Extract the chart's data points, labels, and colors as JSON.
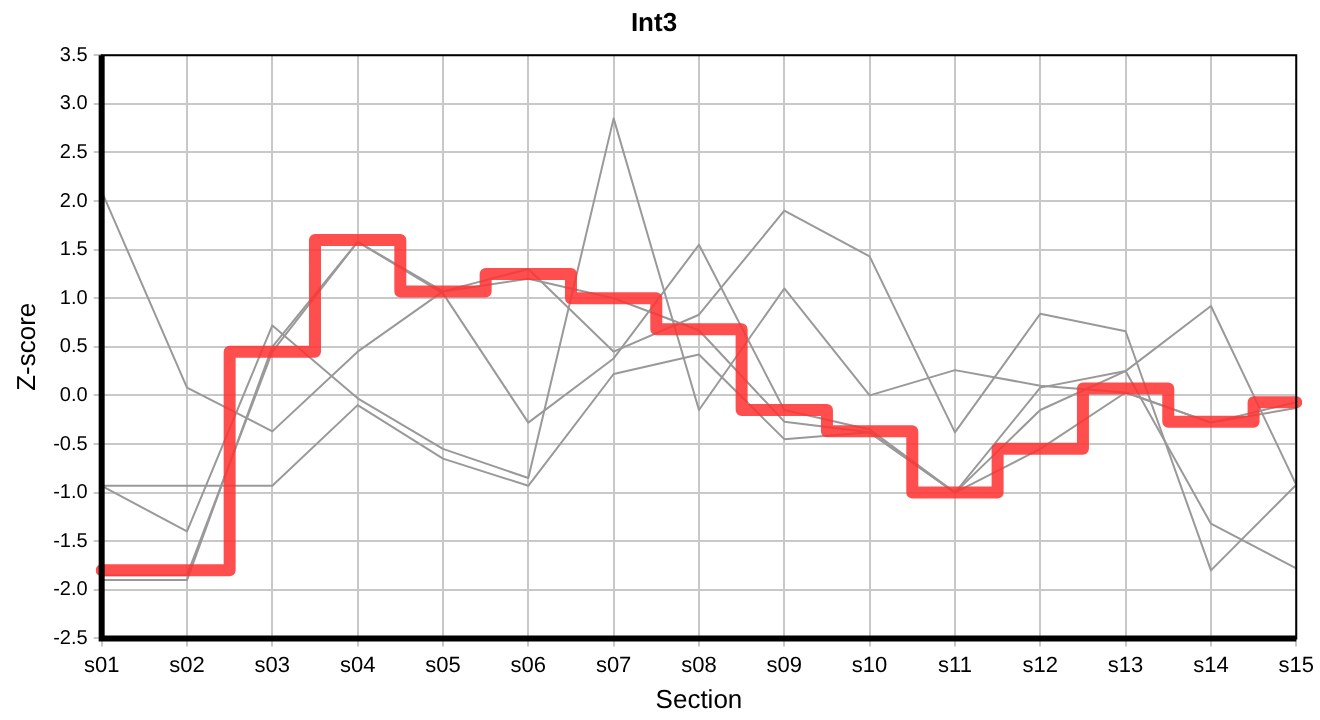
{
  "chart_data": {
    "type": "line",
    "title": "Int3",
    "xlabel": "Section",
    "ylabel": "Z-score",
    "categories": [
      "s01",
      "s02",
      "s03",
      "s04",
      "s05",
      "s06",
      "s07",
      "s08",
      "s09",
      "s10",
      "s11",
      "s12",
      "s13",
      "s14",
      "s15"
    ],
    "ylim": [
      -2.5,
      3.5
    ],
    "yticks": [
      -2.5,
      {
        "value": -2,
        "label": "-2.0"
      },
      -1.5,
      {
        "value": -1,
        "label": "-1.0"
      },
      -0.5,
      {
        "value": 0,
        "label": "0.0"
      },
      0.5,
      {
        "value": 1,
        "label": "1.0"
      },
      1.5,
      {
        "value": 2,
        "label": "2.0"
      },
      2.5,
      {
        "value": 3,
        "label": "3.0"
      },
      3.5
    ],
    "grid": true,
    "legend": false,
    "marker": "none",
    "line_style": "solid",
    "series": [
      {
        "color": "#999999",
        "values": [
          2.1,
          0.08,
          -0.37,
          0.45,
          1.07,
          1.3,
          0.45,
          0.83,
          1.9,
          1.43,
          -0.38,
          0.84,
          0.66,
          -1.8,
          -0.92
        ]
      },
      {
        "color": "#999999",
        "values": [
          -0.93,
          -1.4,
          0.72,
          -0.03,
          -0.55,
          -0.85,
          2.85,
          -0.15,
          1.1,
          0,
          0.26,
          0.1,
          0.03,
          -0.28,
          -0.07
        ]
      },
      {
        "color": "#999999",
        "values": [
          -0.93,
          -0.93,
          -0.93,
          -0.1,
          -0.65,
          -0.93,
          0.22,
          0.42,
          -0.45,
          -0.38,
          -1.0,
          0.08,
          0.25,
          0.92,
          -0.92
        ]
      },
      {
        "color": "#999999",
        "values": [
          -1.9,
          -1.9,
          0.5,
          1.58,
          1.05,
          -0.28,
          0.38,
          1.55,
          -0.15,
          -0.35,
          -1.0,
          -0.15,
          0.25,
          -1.32,
          -1.78
        ]
      },
      {
        "color": "#999999",
        "values": [
          -1.85,
          -1.85,
          0.45,
          1.58,
          1.07,
          1.2,
          1.0,
          0.67,
          -0.27,
          -0.38,
          -1.0,
          -0.55,
          0.03,
          -0.28,
          -0.13
        ]
      },
      {
        "type": "step",
        "color": "#ff3333",
        "values": [
          -1.8,
          -1.8,
          0.45,
          1.6,
          1.07,
          1.25,
          1.0,
          0.68,
          -0.15,
          -0.37,
          -1.0,
          -0.55,
          0.07,
          -0.27,
          -0.07
        ]
      }
    ]
  }
}
